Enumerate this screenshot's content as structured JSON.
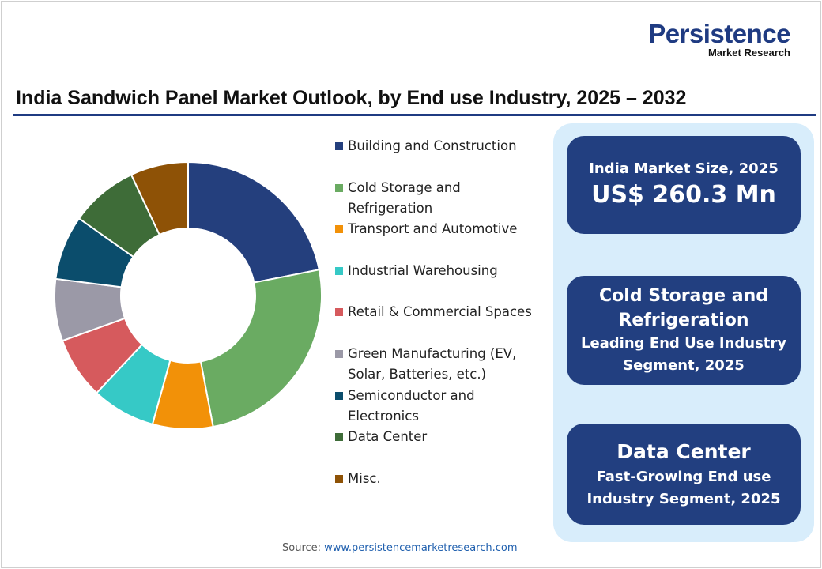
{
  "logo": {
    "line1": "Persistence",
    "line2": "Market Research"
  },
  "chart_data": {
    "type": "pie",
    "variant": "donut",
    "title": "India Sandwich Panel Market Outlook, by End use Industry, 2025 – 2032",
    "categories": [
      "Building and Construction",
      "Cold Storage and Refrigeration",
      "Transport and Automotive",
      "Industrial Warehousing",
      "Retail & Commercial Spaces",
      "Green Manufacturing (EV, Solar, Batteries, etc.)",
      "Semiconductor and Electronics",
      "Data Center",
      "Misc."
    ],
    "values": [
      21.9,
      25.1,
      7.3,
      7.7,
      7.5,
      7.5,
      7.8,
      8.2,
      7.0
    ],
    "colors": [
      "#243f7d",
      "#6aab62",
      "#f29108",
      "#36c9c6",
      "#d65a5d",
      "#9b99a7",
      "#0b4d6c",
      "#3e6c38",
      "#8e5206"
    ],
    "legend_position": "right"
  },
  "legend_lines": [
    [
      "Building and Construction"
    ],
    [
      "Cold Storage and",
      "Refrigeration"
    ],
    [
      "Transport and Automotive"
    ],
    [
      "Industrial Warehousing"
    ],
    [
      "Retail & Commercial Spaces"
    ],
    [
      "Green Manufacturing (EV,",
      "Solar, Batteries, etc.)"
    ],
    [
      "Semiconductor and",
      "Electronics"
    ],
    [
      "Data Center"
    ],
    [
      "Misc."
    ]
  ],
  "panel": {
    "box1": {
      "label": "India Market Size, 2025",
      "value": "US$ 260.3 Mn"
    },
    "box2": {
      "title1": "Cold Storage and",
      "title2": "Refrigeration",
      "sub1": "Leading End Use Industry",
      "sub2": "Segment, 2025"
    },
    "box3": {
      "title": "Data Center",
      "sub1": "Fast-Growing End use",
      "sub2": "Industry Segment, 2025"
    }
  },
  "source": {
    "label": "Source:",
    "link": "www.persistencemarketresearch.com"
  }
}
